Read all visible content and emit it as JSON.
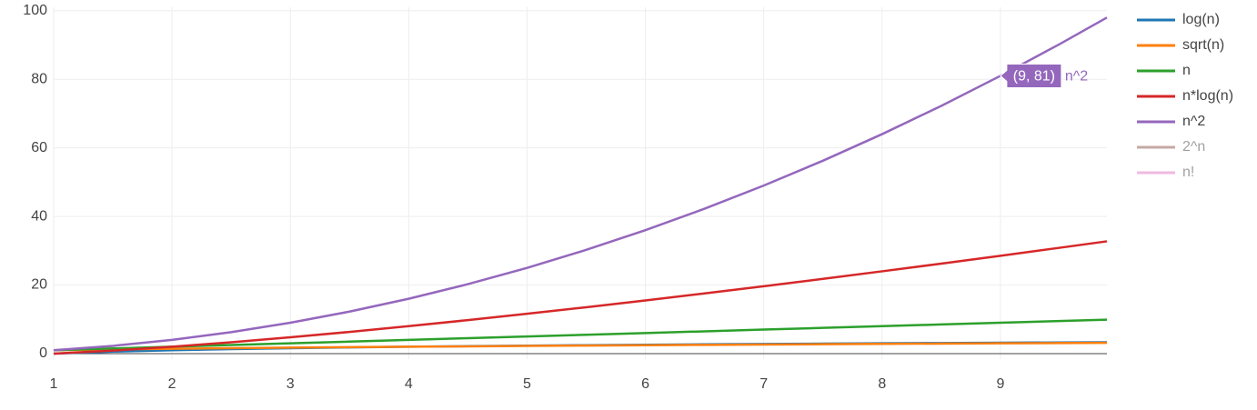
{
  "chart_data": {
    "type": "line",
    "x": [
      1,
      1.5,
      2,
      2.5,
      3,
      3.5,
      4,
      4.5,
      5,
      5.5,
      6,
      6.5,
      7,
      7.5,
      8,
      8.5,
      9,
      9.5,
      9.9
    ],
    "series": [
      {
        "name": "log(n)",
        "color": "#1f77b4",
        "visible": true,
        "values": [
          0,
          0.585,
          1,
          1.322,
          1.585,
          1.807,
          2,
          2.17,
          2.322,
          2.459,
          2.585,
          2.7,
          2.807,
          2.907,
          3,
          3.087,
          3.17,
          3.248,
          3.308
        ]
      },
      {
        "name": "sqrt(n)",
        "color": "#ff7f0e",
        "visible": true,
        "values": [
          1,
          1.225,
          1.414,
          1.581,
          1.732,
          1.871,
          2,
          2.121,
          2.236,
          2.345,
          2.449,
          2.55,
          2.646,
          2.739,
          2.828,
          2.915,
          3,
          3.082,
          3.146
        ]
      },
      {
        "name": "n",
        "color": "#2ca02c",
        "visible": true,
        "values": [
          1,
          1.5,
          2,
          2.5,
          3,
          3.5,
          4,
          4.5,
          5,
          5.5,
          6,
          6.5,
          7,
          7.5,
          8,
          8.5,
          9,
          9.5,
          9.9
        ]
      },
      {
        "name": "n*log(n)",
        "color": "#d62728",
        "visible": true,
        "values": [
          0,
          0.877,
          2,
          3.305,
          4.755,
          6.325,
          8,
          9.765,
          11.61,
          13.52,
          15.51,
          17.55,
          19.65,
          21.8,
          24,
          26.24,
          28.53,
          30.86,
          32.75
        ]
      },
      {
        "name": "n^2",
        "color": "#9467bd",
        "visible": true,
        "values": [
          1,
          2.25,
          4,
          6.25,
          9,
          12.25,
          16,
          20.25,
          25,
          30.25,
          36,
          42.25,
          49,
          56.25,
          64,
          72.25,
          81,
          90.25,
          98.01
        ]
      },
      {
        "name": "2^n",
        "color": "#8c564b",
        "visible": false
      },
      {
        "name": "n!",
        "color": "#e377c2",
        "visible": false
      }
    ],
    "xlim": [
      1,
      9.9
    ],
    "xticks": [
      1,
      2,
      3,
      4,
      5,
      6,
      7,
      8,
      9
    ],
    "ylim": [
      -1.6,
      101
    ],
    "yticks": [
      0,
      20,
      40,
      60,
      80,
      100
    ],
    "grid": true,
    "legend": "right",
    "hover": {
      "x": 9,
      "y": 81,
      "label": "(9, 81)",
      "series": 4
    }
  }
}
